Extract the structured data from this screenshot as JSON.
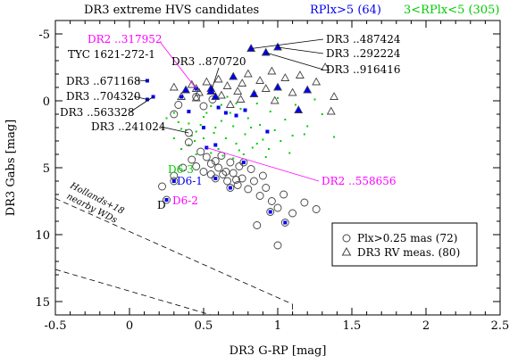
{
  "chart_data": {
    "type": "scatter",
    "title": "DR3 extreme HVS candidates",
    "xlabel": "DR3 G-RP [mag]",
    "ylabel": "DR3 Gabs [mag]",
    "xlim": [
      -0.5,
      2.5
    ],
    "ylim": [
      16,
      -6
    ],
    "y_inverted": true,
    "x_ticks": [
      -0.5,
      0,
      0.5,
      1,
      1.5,
      2,
      2.5
    ],
    "x_tick_labels": [
      "-0.5",
      "0",
      "0.5",
      "1",
      "1.5",
      "2",
      "2.5"
    ],
    "y_ticks": [
      -5,
      0,
      5,
      10,
      15
    ],
    "y_tick_labels": [
      "-5",
      "0",
      "5",
      "10",
      "15"
    ],
    "grid": false,
    "colors": {
      "axes": "#000000",
      "blue": "#0000ee",
      "green": "#00cc00",
      "magenta": "#ff00ff",
      "circle": "#444444",
      "triangle": "#444444"
    },
    "header_legend": [
      {
        "text": "RPlx>5 (64)",
        "color": "#0000ee"
      },
      {
        "text": "3<RPlx<5 (305)",
        "color": "#00cc00"
      }
    ],
    "legend": {
      "placement": "bottom-right",
      "entries": [
        {
          "symbol": "circle",
          "text": "Plx>0.25 mas (72)"
        },
        {
          "symbol": "triangle",
          "text": "DR3 RV meas. (80)"
        }
      ]
    },
    "series": [
      {
        "name": "RPlx>5 (64)",
        "color": "#0000ee",
        "marker": "square",
        "points": [
          [
            0.12,
            -1.5
          ],
          [
            0.16,
            -0.3
          ],
          [
            0.12,
            -0.1
          ],
          [
            0.4,
            0.8
          ],
          [
            0.5,
            2.0
          ],
          [
            0.58,
            3.3
          ],
          [
            0.52,
            3.5
          ],
          [
            0.35,
            -0.3
          ],
          [
            0.45,
            -0.9
          ],
          [
            0.55,
            -0.7
          ],
          [
            0.6,
            0.5
          ],
          [
            0.65,
            0.9
          ],
          [
            0.72,
            1.1
          ],
          [
            0.78,
            0.7
          ],
          [
            0.93,
            2.3
          ],
          [
            0.3,
            6.0
          ],
          [
            0.25,
            7.4
          ],
          [
            0.77,
            4.6
          ],
          [
            0.95,
            8.3
          ],
          [
            1.05,
            9.1
          ],
          [
            0.58,
            5.8
          ],
          [
            0.68,
            6.5
          ]
        ]
      },
      {
        "name": "3<RPlx<5 (305)",
        "color": "#00cc00",
        "marker": "dot",
        "points": [
          [
            0.25,
            1.3
          ],
          [
            0.3,
            0.9
          ],
          [
            0.35,
            2.1
          ],
          [
            0.4,
            1.7
          ],
          [
            0.45,
            2.3
          ],
          [
            0.5,
            1.2
          ],
          [
            0.55,
            0.4
          ],
          [
            0.58,
            2.0
          ],
          [
            0.62,
            1.5
          ],
          [
            0.65,
            2.8
          ],
          [
            0.68,
            0.9
          ],
          [
            0.7,
            1.9
          ],
          [
            0.72,
            3.2
          ],
          [
            0.75,
            0.6
          ],
          [
            0.78,
            2.5
          ],
          [
            0.8,
            1.3
          ],
          [
            0.83,
            3.5
          ],
          [
            0.86,
            0.2
          ],
          [
            0.88,
            1.8
          ],
          [
            0.9,
            2.9
          ],
          [
            0.92,
            4.2
          ],
          [
            0.95,
            0.8
          ],
          [
            0.98,
            2.2
          ],
          [
            1.02,
            3.0
          ],
          [
            1.05,
            1.4
          ],
          [
            1.1,
            2.6
          ],
          [
            1.15,
            0.7
          ],
          [
            1.2,
            1.9
          ],
          [
            1.3,
            1.0
          ],
          [
            1.38,
            2.7
          ],
          [
            0.3,
            2.8
          ],
          [
            0.35,
            3.6
          ],
          [
            0.4,
            3.3
          ],
          [
            0.45,
            4.0
          ],
          [
            0.5,
            2.8
          ],
          [
            0.55,
            3.9
          ],
          [
            0.6,
            3.6
          ],
          [
            0.52,
            0.9
          ],
          [
            0.48,
            1.8
          ],
          [
            0.42,
            2.6
          ],
          [
            0.62,
            0.3
          ],
          [
            0.66,
            -0.3
          ],
          [
            0.72,
            0.2
          ],
          [
            0.85,
            -0.6
          ],
          [
            1.0,
            -0.2
          ],
          [
            1.12,
            0.3
          ],
          [
            1.25,
            -0.1
          ],
          [
            0.57,
            2.4
          ],
          [
            0.63,
            4.1
          ],
          [
            0.7,
            4.3
          ],
          [
            0.77,
            4.0
          ],
          [
            0.82,
            2.0
          ],
          [
            0.94,
            3.6
          ],
          [
            1.08,
            3.9
          ],
          [
            0.44,
            3.0
          ],
          [
            0.38,
            2.2
          ],
          [
            0.33,
            1.6
          ],
          [
            0.74,
            3.7
          ],
          [
            0.86,
            3.2
          ],
          [
            1.18,
            2.5
          ]
        ]
      },
      {
        "name": "Plx>0.25 mas (72)",
        "color": "#444444",
        "marker": "circle",
        "points": [
          [
            0.22,
            6.4
          ],
          [
            0.3,
            5.6
          ],
          [
            0.36,
            5.0
          ],
          [
            0.42,
            4.4
          ],
          [
            0.45,
            4.9
          ],
          [
            0.5,
            5.3
          ],
          [
            0.55,
            4.7
          ],
          [
            0.6,
            5.0
          ],
          [
            0.63,
            5.5
          ],
          [
            0.66,
            6.0
          ],
          [
            0.7,
            5.4
          ],
          [
            0.73,
            6.3
          ],
          [
            0.76,
            5.8
          ],
          [
            0.8,
            6.6
          ],
          [
            0.84,
            6.0
          ],
          [
            0.88,
            7.1
          ],
          [
            0.92,
            6.5
          ],
          [
            0.96,
            7.5
          ],
          [
            1.0,
            8.0
          ],
          [
            1.04,
            7.0
          ],
          [
            1.1,
            8.4
          ],
          [
            1.18,
            7.6
          ],
          [
            1.26,
            8.1
          ],
          [
            1.0,
            10.8
          ],
          [
            0.86,
            9.3
          ],
          [
            0.95,
            8.3
          ],
          [
            1.05,
            9.1
          ],
          [
            0.4,
            3.1
          ],
          [
            0.48,
            3.8
          ],
          [
            0.52,
            4.2
          ],
          [
            0.58,
            4.5
          ],
          [
            0.62,
            4.1
          ],
          [
            0.68,
            4.6
          ],
          [
            0.74,
            4.9
          ],
          [
            0.4,
            2.4
          ],
          [
            0.33,
            0.3
          ],
          [
            0.3,
            1.0
          ],
          [
            0.5,
            0.4
          ],
          [
            0.56,
            -0.1
          ],
          [
            0.45,
            -0.3
          ],
          [
            0.3,
            6.0
          ],
          [
            0.25,
            7.4
          ],
          [
            0.77,
            4.6
          ],
          [
            0.58,
            5.8
          ],
          [
            0.68,
            6.5
          ],
          [
            0.55,
            5.5
          ],
          [
            0.65,
            5.3
          ],
          [
            0.72,
            5.9
          ],
          [
            0.82,
            5.1
          ],
          [
            0.9,
            5.6
          ]
        ]
      },
      {
        "name": "DR3 RV meas. (80)",
        "color": "#444444",
        "marker": "triangle",
        "points": [
          [
            0.3,
            -1.0
          ],
          [
            0.38,
            -0.8
          ],
          [
            0.42,
            -1.2
          ],
          [
            0.47,
            -0.6
          ],
          [
            0.52,
            -1.4
          ],
          [
            0.55,
            -0.9
          ],
          [
            0.6,
            -1.6
          ],
          [
            0.62,
            -0.4
          ],
          [
            0.66,
            -1.1
          ],
          [
            0.7,
            -1.8
          ],
          [
            0.73,
            -0.7
          ],
          [
            0.76,
            -1.3
          ],
          [
            0.8,
            -2.0
          ],
          [
            0.84,
            -0.5
          ],
          [
            0.88,
            -1.5
          ],
          [
            0.92,
            -0.9
          ],
          [
            0.96,
            -2.2
          ],
          [
            1.0,
            -1.0
          ],
          [
            1.05,
            -1.7
          ],
          [
            1.1,
            -0.6
          ],
          [
            1.15,
            -1.9
          ],
          [
            1.2,
            -0.8
          ],
          [
            1.26,
            -1.4
          ],
          [
            1.32,
            -2.5
          ],
          [
            1.38,
            -0.3
          ],
          [
            0.82,
            -3.9
          ],
          [
            1.0,
            -4.0
          ],
          [
            0.92,
            -3.6
          ],
          [
            0.45,
            -0.2
          ],
          [
            0.58,
            -0.3
          ],
          [
            0.68,
            0.3
          ],
          [
            0.75,
            -0.1
          ],
          [
            0.98,
            0.0
          ],
          [
            1.14,
            0.7
          ],
          [
            1.36,
            0.8
          ],
          [
            0.35,
            -0.3
          ],
          [
            0.45,
            -0.9
          ],
          [
            0.55,
            -0.7
          ]
        ]
      }
    ],
    "annotations": [
      {
        "text": "DR2 ..317952",
        "color": "#ff00ff"
      },
      {
        "text": "TYC 1621-272-1",
        "color": "#000000"
      },
      {
        "text": "DR3 ..870720",
        "color": "#000000"
      },
      {
        "text": "DR3 ..487424",
        "color": "#000000"
      },
      {
        "text": "DR3 ..292224",
        "color": "#000000"
      },
      {
        "text": "DR3 ..916416",
        "color": "#000000"
      },
      {
        "text": "DR3 ..671168",
        "color": "#000000"
      },
      {
        "text": "DR3 ..704320",
        "color": "#000000"
      },
      {
        "text": "DR3 ..563328",
        "color": "#000000"
      },
      {
        "text": "DR3 ..241024",
        "color": "#000000"
      },
      {
        "text": "DR2 ..558656",
        "color": "#ff00ff"
      },
      {
        "text": "D6-3",
        "color": "#00cc00"
      },
      {
        "text": "D6-1",
        "color": "#0000ee"
      },
      {
        "text": "D6-2",
        "color": "#ff00ff"
      },
      {
        "text": "D",
        "color": "#000000"
      },
      {
        "text": "Hollands+18",
        "color": "#000000"
      },
      {
        "text": "nearby WDs",
        "color": "#000000"
      }
    ]
  }
}
